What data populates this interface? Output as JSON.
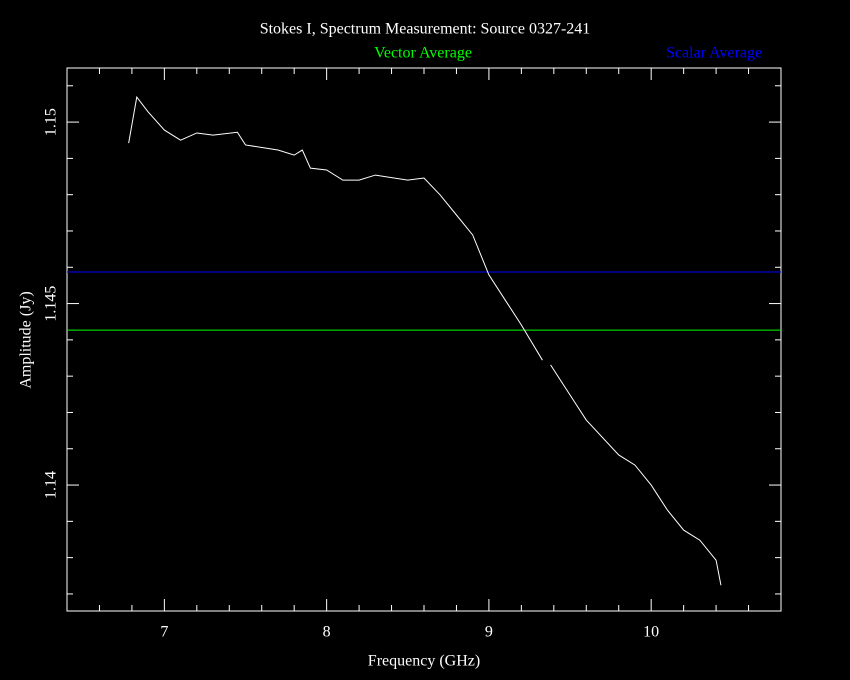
{
  "chart_data": {
    "type": "line",
    "title": "Stokes I, Spectrum Measurement: Source 0327-241",
    "xlabel": "Frequency (GHz)",
    "ylabel": "Amplitude (Jy)",
    "xlim": [
      6.4,
      10.8
    ],
    "ylim": [
      1.13653,
      1.15149
    ],
    "xticks": [
      7,
      8,
      9,
      10
    ],
    "yticks": [
      1.14,
      1.145,
      1.15
    ],
    "xminorticks": [
      6.6,
      6.8,
      7.2,
      7.4,
      7.6,
      7.8,
      8.2,
      8.4,
      8.6,
      8.8,
      9.2,
      9.4,
      9.6,
      9.8,
      10.2,
      10.4,
      10.6
    ],
    "yminorticks": [
      1.137,
      1.138,
      1.139,
      1.141,
      1.142,
      1.143,
      1.144,
      1.146,
      1.147,
      1.148,
      1.149,
      1.151
    ],
    "series": [
      {
        "color": "#ffffff",
        "x": [
          6.78,
          6.83,
          6.9,
          7.0,
          7.1,
          7.2,
          7.3,
          7.45,
          7.5,
          7.7,
          7.8,
          7.85,
          7.9,
          8.0,
          8.1,
          8.2,
          8.3,
          8.5,
          8.6,
          8.7,
          8.8,
          8.9,
          9.0,
          9.1,
          9.2,
          9.33,
          9.35,
          9.38,
          9.5,
          9.6,
          9.8,
          9.9,
          10.0,
          10.1,
          10.2,
          10.3,
          10.4,
          10.43
        ],
        "values": [
          1.14942,
          1.15069,
          1.15028,
          1.14978,
          1.1495,
          1.1497,
          1.14964,
          1.14972,
          1.14937,
          1.14923,
          1.14909,
          1.14923,
          1.14873,
          1.14868,
          1.1484,
          1.1484,
          1.14854,
          1.1484,
          1.14846,
          1.14799,
          1.14744,
          1.14689,
          1.14579,
          1.1451,
          1.14441,
          1.14344,
          null,
          1.14331,
          1.14248,
          1.14179,
          1.14083,
          1.14055,
          1.14,
          1.13931,
          1.13876,
          1.13848,
          1.13793,
          1.13724
        ]
      }
    ],
    "hlines": [
      {
        "name": "Vector Average",
        "color": "#00ff00",
        "value": 1.14427
      },
      {
        "name": "Scalar Average",
        "color": "#0000ff",
        "value": 1.14587
      }
    ]
  }
}
